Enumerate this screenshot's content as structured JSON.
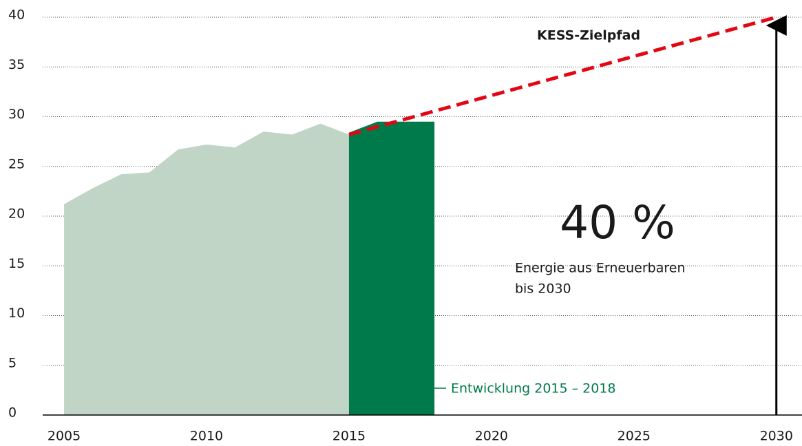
{
  "chart_data": {
    "type": "area",
    "xlim": [
      2004.25,
      2030.9
    ],
    "xticks": [
      2005,
      2010,
      2015,
      2020,
      2025,
      2030
    ],
    "ylim": [
      0,
      40
    ],
    "yticks": [
      0,
      5,
      10,
      15,
      20,
      25,
      30,
      35,
      40
    ],
    "grid": true,
    "series": [
      {
        "color": "#c1d5c6",
        "style": "area",
        "x": [
          2005,
          2006,
          2007,
          2008,
          2009,
          2010,
          2011,
          2012,
          2013,
          2014,
          2015
        ],
        "values": [
          21.2,
          22.8,
          24.2,
          24.4,
          26.7,
          27.2,
          26.9,
          28.5,
          28.2,
          29.3,
          28.2
        ]
      },
      {
        "name": "Entwicklung 2015 – 2018",
        "color": "#007a4a",
        "style": "area",
        "x": [
          2015,
          2016,
          2017,
          2018
        ],
        "values": [
          28.4,
          29.5,
          29.5,
          29.5
        ]
      },
      {
        "name": "KESS-Zielpfad",
        "color": "#e30613",
        "style": "dashed",
        "x": [
          2015,
          2030
        ],
        "values": [
          28.2,
          40
        ]
      }
    ],
    "annotations": [
      {
        "text": "40 %"
      },
      {
        "text": "Energie aus Erneuerbaren"
      },
      {
        "text": "bis 2030"
      }
    ]
  }
}
